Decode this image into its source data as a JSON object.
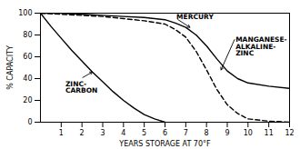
{
  "chart_data": {
    "type": "line",
    "xlabel": "YEARS STORAGE AT 70°F",
    "ylabel": "% CAPACITY",
    "xlim": [
      0,
      12
    ],
    "ylim": [
      0,
      100
    ],
    "xticks": [
      1,
      2,
      3,
      4,
      5,
      6,
      7,
      8,
      9,
      10,
      11,
      12
    ],
    "yticks": [
      0,
      20,
      40,
      60,
      80,
      100
    ],
    "grid": false,
    "series": [
      {
        "x": [
          0,
          1,
          2,
          3,
          4,
          5,
          6,
          6.5,
          7,
          7.5,
          8,
          8.5,
          9,
          9.5,
          10,
          11,
          12
        ],
        "values": [
          100,
          100,
          99,
          98,
          97,
          96,
          94,
          91,
          87,
          80,
          70,
          58,
          47,
          40,
          36,
          33,
          31
        ],
        "line_style": "solid"
      },
      {
        "x": [
          0,
          1,
          2,
          3,
          4,
          5,
          6,
          6.5,
          7,
          7.5,
          8,
          8.5,
          9,
          9.5,
          10,
          11,
          12
        ],
        "values": [
          100,
          99,
          98,
          97,
          95,
          93,
          90,
          85,
          78,
          65,
          48,
          30,
          16,
          8,
          3,
          1,
          0
        ],
        "line_style": "dashed"
      },
      {
        "x": [
          0,
          0.5,
          1,
          1.5,
          2,
          2.5,
          3,
          3.5,
          4,
          4.5,
          5,
          5.5,
          6
        ],
        "values": [
          100,
          88,
          77,
          66,
          56,
          46,
          37,
          28,
          20,
          13,
          7,
          3,
          0
        ],
        "line_style": "solid"
      }
    ],
    "annotations": [
      {
        "text": "MERCURY",
        "x": 6.55,
        "y": 95,
        "arrow_x": 7.2,
        "arrow_y": 87
      },
      {
        "text": "MANGANESE-\nALKALINE-\nZINC",
        "x": 9.4,
        "y": 78,
        "arrow_x": 8.7,
        "arrow_y": 48
      },
      {
        "text": "ZINC-\nCARBON",
        "x": 1.2,
        "y": 32,
        "arrow_x": 2.5,
        "arrow_y": 46
      }
    ]
  }
}
